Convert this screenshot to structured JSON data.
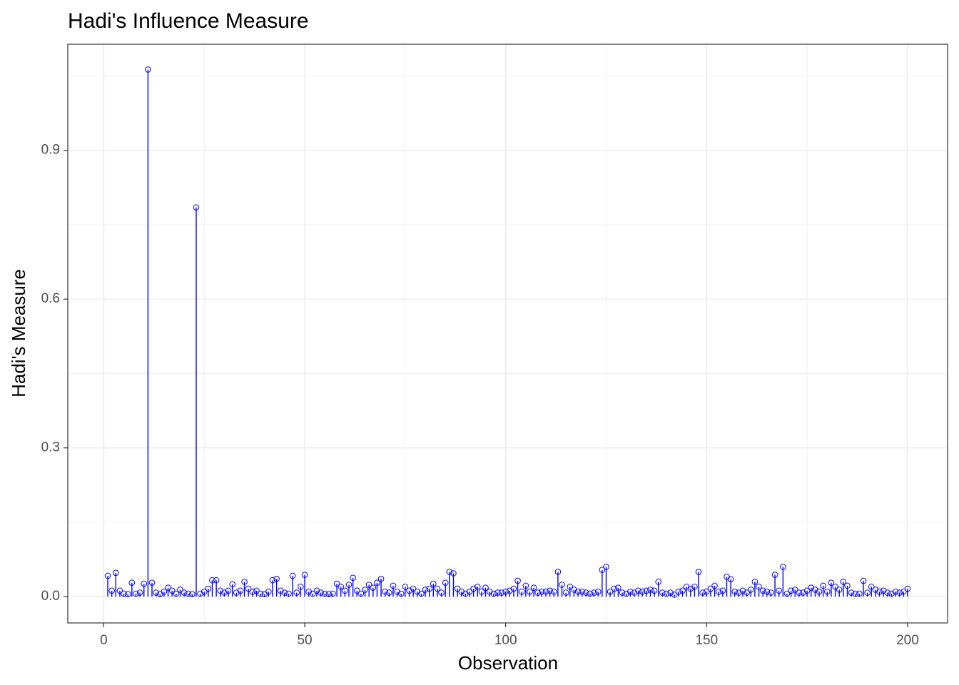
{
  "chart_data": {
    "type": "stem",
    "title": "Hadi's Influence Measure",
    "x_label": "Observation",
    "y_label": "Hadi's Measure",
    "color": "#0000ff",
    "grid": true,
    "xlim": [
      -8.95,
      209.95
    ],
    "ylim": [
      -0.053,
      1.114
    ],
    "xticks": [
      0,
      50,
      100,
      150,
      200
    ],
    "yticks": [
      {
        "value": 0,
        "label": "0.0"
      },
      0.3,
      0.6,
      0.9
    ],
    "x": [
      1,
      2,
      3,
      4,
      5,
      6,
      7,
      8,
      9,
      10,
      11,
      12,
      13,
      14,
      15,
      16,
      17,
      18,
      19,
      20,
      21,
      22,
      23,
      24,
      25,
      26,
      27,
      28,
      29,
      30,
      31,
      32,
      33,
      34,
      35,
      36,
      37,
      38,
      39,
      40,
      41,
      42,
      43,
      44,
      45,
      46,
      47,
      48,
      49,
      50,
      51,
      52,
      53,
      54,
      55,
      56,
      57,
      58,
      59,
      60,
      61,
      62,
      63,
      64,
      65,
      66,
      67,
      68,
      69,
      70,
      71,
      72,
      73,
      74,
      75,
      76,
      77,
      78,
      79,
      80,
      81,
      82,
      83,
      84,
      85,
      86,
      87,
      88,
      89,
      90,
      91,
      92,
      93,
      94,
      95,
      96,
      97,
      98,
      99,
      100,
      101,
      102,
      103,
      104,
      105,
      106,
      107,
      108,
      109,
      110,
      111,
      112,
      113,
      114,
      115,
      116,
      117,
      118,
      119,
      120,
      121,
      122,
      123,
      124,
      125,
      126,
      127,
      128,
      129,
      130,
      131,
      132,
      133,
      134,
      135,
      136,
      137,
      138,
      139,
      140,
      141,
      142,
      143,
      144,
      145,
      146,
      147,
      148,
      149,
      150,
      151,
      152,
      153,
      154,
      155,
      156,
      157,
      158,
      159,
      160,
      161,
      162,
      163,
      164,
      165,
      166,
      167,
      168,
      169,
      170,
      171,
      172,
      173,
      174,
      175,
      176,
      177,
      178,
      179,
      180,
      181,
      182,
      183,
      184,
      185,
      186,
      187,
      188,
      189,
      190,
      191,
      192,
      193,
      194,
      195,
      196,
      197,
      198,
      199,
      200
    ],
    "values": [
      0.042,
      0.012,
      0.048,
      0.012,
      0.006,
      0.005,
      0.028,
      0.006,
      0.008,
      0.026,
      1.063,
      0.028,
      0.008,
      0.005,
      0.01,
      0.018,
      0.012,
      0.006,
      0.014,
      0.008,
      0.006,
      0.005,
      0.785,
      0.006,
      0.01,
      0.016,
      0.033,
      0.033,
      0.012,
      0.008,
      0.012,
      0.025,
      0.008,
      0.012,
      0.03,
      0.016,
      0.01,
      0.012,
      0.006,
      0.005,
      0.01,
      0.033,
      0.036,
      0.012,
      0.008,
      0.006,
      0.042,
      0.008,
      0.02,
      0.044,
      0.01,
      0.006,
      0.012,
      0.008,
      0.006,
      0.005,
      0.006,
      0.026,
      0.02,
      0.012,
      0.024,
      0.038,
      0.012,
      0.006,
      0.014,
      0.024,
      0.018,
      0.028,
      0.036,
      0.01,
      0.008,
      0.022,
      0.01,
      0.006,
      0.02,
      0.012,
      0.016,
      0.01,
      0.006,
      0.014,
      0.016,
      0.026,
      0.016,
      0.008,
      0.028,
      0.05,
      0.047,
      0.016,
      0.01,
      0.006,
      0.01,
      0.016,
      0.02,
      0.01,
      0.018,
      0.01,
      0.006,
      0.008,
      0.008,
      0.01,
      0.012,
      0.016,
      0.032,
      0.01,
      0.022,
      0.01,
      0.018,
      0.008,
      0.01,
      0.01,
      0.012,
      0.01,
      0.05,
      0.024,
      0.008,
      0.02,
      0.014,
      0.01,
      0.01,
      0.008,
      0.006,
      0.008,
      0.01,
      0.054,
      0.06,
      0.01,
      0.016,
      0.018,
      0.008,
      0.006,
      0.01,
      0.008,
      0.012,
      0.01,
      0.012,
      0.014,
      0.012,
      0.03,
      0.008,
      0.006,
      0.008,
      0.004,
      0.01,
      0.012,
      0.02,
      0.016,
      0.02,
      0.05,
      0.008,
      0.01,
      0.016,
      0.022,
      0.01,
      0.012,
      0.04,
      0.035,
      0.01,
      0.008,
      0.012,
      0.008,
      0.014,
      0.03,
      0.02,
      0.012,
      0.01,
      0.008,
      0.044,
      0.012,
      0.06,
      0.006,
      0.012,
      0.014,
      0.008,
      0.008,
      0.012,
      0.018,
      0.014,
      0.01,
      0.022,
      0.01,
      0.028,
      0.02,
      0.014,
      0.03,
      0.022,
      0.008,
      0.006,
      0.006,
      0.032,
      0.008,
      0.02,
      0.014,
      0.01,
      0.012,
      0.008,
      0.006,
      0.01,
      0.008,
      0.01,
      0.016
    ]
  }
}
